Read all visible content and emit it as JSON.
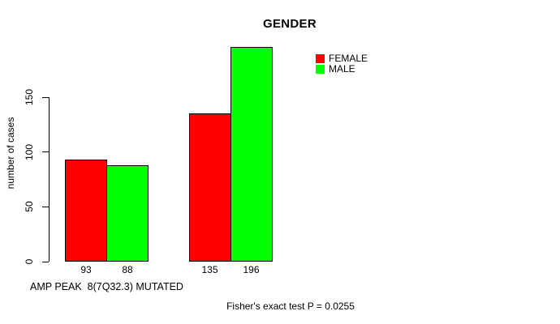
{
  "chart_data": {
    "type": "bar",
    "title": "GENDER",
    "xlabel": "AMP PEAK  8(7Q32.3) MUTATED",
    "ylabel": "number of cases",
    "annotation": "Fisher's exact test P = 0.0255",
    "yticks": [
      0,
      50,
      100,
      150
    ],
    "ylim": [
      0,
      200
    ],
    "grid": false,
    "legend_position": "top-right",
    "categories": [
      "",
      ""
    ],
    "series": [
      {
        "name": "FEMALE",
        "color": "#ff0000",
        "values": [
          93,
          135
        ]
      },
      {
        "name": "MALE",
        "color": "#00ff00",
        "values": [
          88,
          196
        ]
      }
    ],
    "bar_value_labels": [
      [
        93,
        88
      ],
      [
        135,
        196
      ]
    ],
    "colors": {
      "female": "#ff0000",
      "male": "#00ff00",
      "bar_border": "#000000",
      "axis": "#000000",
      "text": "#000000",
      "background": "#ffffff"
    }
  }
}
